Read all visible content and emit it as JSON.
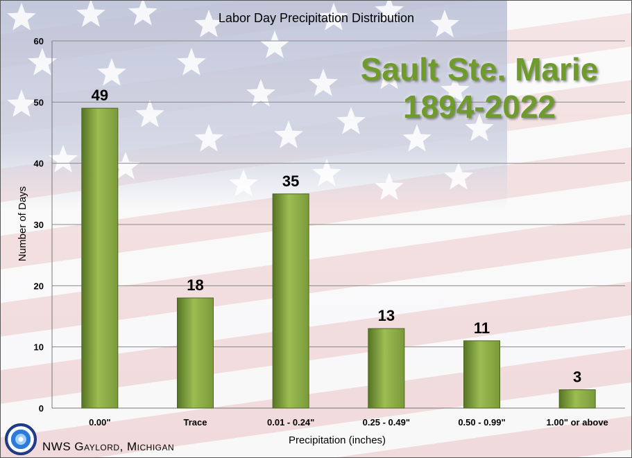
{
  "chart_data": {
    "type": "bar",
    "title": "Labor Day Precipitation Distribution",
    "subtitle_lines": [
      "Sault Ste. Marie",
      "1894-2022"
    ],
    "xlabel": "Precipitation (inches)",
    "ylabel": "Number of Days",
    "categories": [
      "0.00\"",
      "Trace",
      "0.01 - 0.24\"",
      "0.25 - 0.49\"",
      "0.50 - 0.99\"",
      "1.00\" or above"
    ],
    "values": [
      49,
      18,
      35,
      13,
      11,
      3
    ],
    "ylim": [
      0,
      60
    ],
    "yticks": [
      0,
      10,
      20,
      30,
      40,
      50,
      60
    ],
    "grid": true,
    "data_labels": true,
    "bar_color": "#7a9a3a",
    "bar_color_light": "#9bbd52",
    "bar_color_dark": "#567424"
  },
  "credit": "NWS Gaylord, Michigan",
  "logo_icon": "nws-logo-icon"
}
